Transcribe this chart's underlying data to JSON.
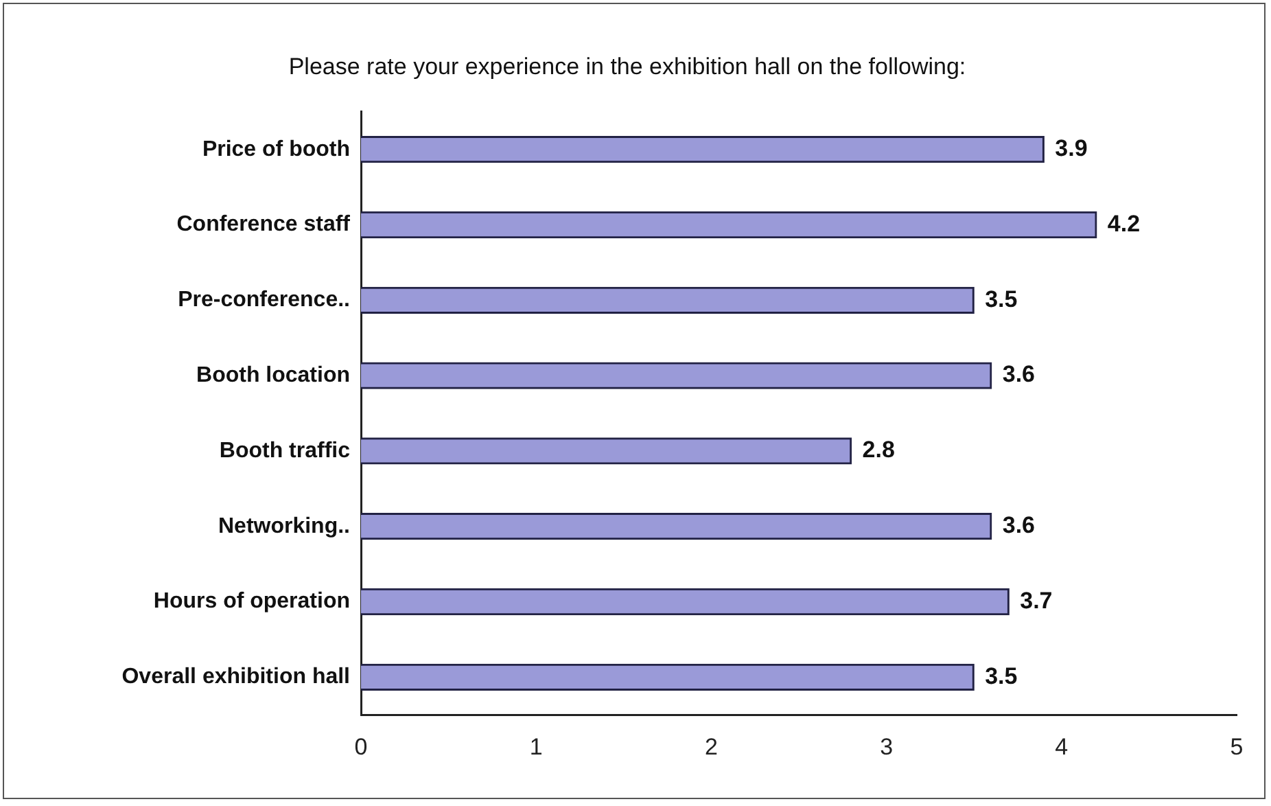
{
  "chart_data": {
    "type": "bar",
    "orientation": "horizontal",
    "title": "Please rate your experience in the exhibition hall on the following:",
    "categories": [
      "Price of booth",
      "Conference staff",
      "Pre-conference..",
      "Booth location",
      "Booth traffic",
      "Networking..",
      "Hours of operation",
      "Overall exhibition hall"
    ],
    "values": [
      3.9,
      4.2,
      3.5,
      3.6,
      2.8,
      3.6,
      3.7,
      3.5
    ],
    "color": "#9a9ad8",
    "xlim": [
      0,
      5
    ],
    "xticks": [
      0,
      1,
      2,
      3,
      4,
      5
    ],
    "grid": false,
    "legend": false,
    "data_labels": true
  }
}
